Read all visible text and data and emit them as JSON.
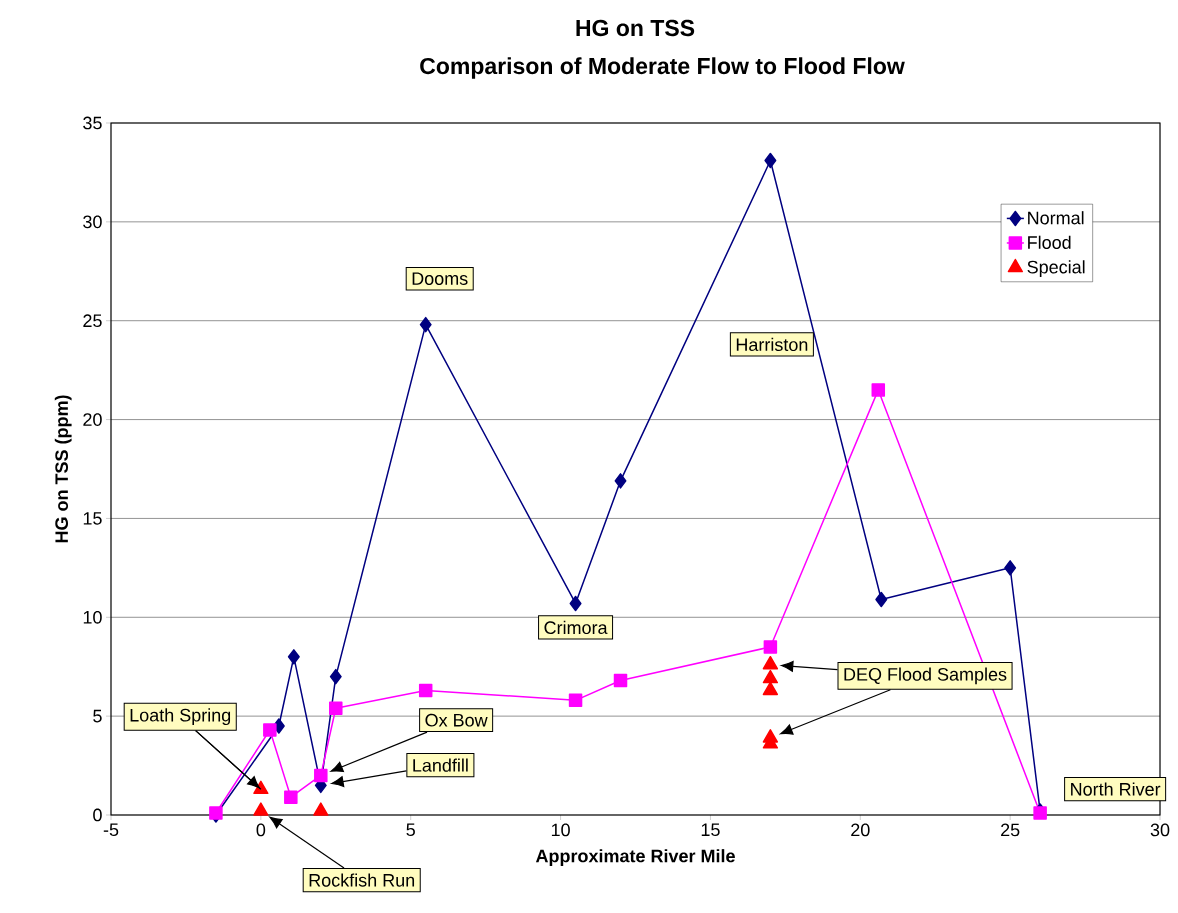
{
  "chart_data": {
    "type": "line",
    "title": "HG on TSS",
    "subtitle": "Comparison of Moderate Flow to Flood Flow",
    "xlabel": "Approximate River Mile",
    "ylabel": "HG on TSS (ppm)",
    "xlim": [
      -5,
      30
    ],
    "xticks": [
      -5,
      0,
      5,
      10,
      15,
      20,
      25,
      30
    ],
    "ylim": [
      0,
      35
    ],
    "yticks": [
      0,
      5,
      10,
      15,
      20,
      25,
      30,
      35
    ],
    "grid": "y",
    "legend": "top right",
    "series": [
      {
        "name": "Normal",
        "type": "line",
        "color": "#000080",
        "marker": "diamond",
        "x": [
          -1.5,
          0.6,
          1.1,
          2.0,
          2.5,
          5.5,
          10.5,
          12,
          17,
          20.7,
          25,
          26
        ],
        "values": [
          0,
          4.5,
          8.0,
          1.5,
          7.0,
          24.8,
          10.7,
          16.9,
          33.1,
          10.9,
          12.5,
          0.2
        ]
      },
      {
        "name": "Flood",
        "type": "line",
        "color": "#ff00ff",
        "marker": "square",
        "x": [
          -1.5,
          0.3,
          1.0,
          2.0,
          2.5,
          5.5,
          10.5,
          12,
          17,
          20.6,
          26
        ],
        "values": [
          0.1,
          4.3,
          0.9,
          2.0,
          5.4,
          6.3,
          5.8,
          6.8,
          8.5,
          21.5,
          0.1
        ]
      },
      {
        "name": "Special",
        "type": "scatter",
        "color": "#ff0000",
        "marker": "triangle",
        "x": [
          0,
          0,
          2,
          17,
          17,
          17,
          17,
          17
        ],
        "values": [
          1.3,
          0.2,
          0.2,
          7.6,
          6.9,
          6.3,
          3.9,
          3.6
        ]
      }
    ],
    "annotations": [
      {
        "text": "Dooms",
        "x": 5.5,
        "y": 24.8
      },
      "Harriston",
      {
        "text": "Crimora",
        "x": 10.5,
        "y": 10.7
      },
      {
        "text": "North River",
        "x": 26,
        "y": 0.2
      },
      {
        "text": "Loath Spring",
        "x": 0,
        "y": 1.3
      },
      "Ox Bow",
      "Landfill",
      "Rockfish Run",
      "DEQ Flood Samples"
    ]
  }
}
